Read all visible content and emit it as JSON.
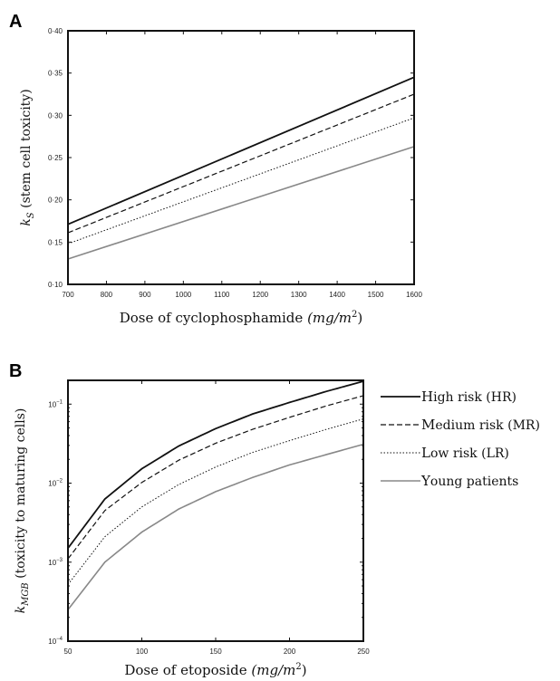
{
  "chart_data": [
    {
      "panel": "A",
      "type": "line",
      "xlabel_main": "Dose of cyclophosphamide ",
      "xlabel_math": "(mg/m",
      "xlabel_sup": "2",
      "xlabel_close": ")",
      "ylabel_main": "k",
      "ylabel_sub": "S",
      "ylabel_rest": " (stem cell toxicity)",
      "xlim": [
        700,
        1600
      ],
      "ylim": [
        0.1,
        0.4
      ],
      "x_ticks": [
        700,
        800,
        900,
        1000,
        1100,
        1200,
        1300,
        1400,
        1500,
        1600
      ],
      "y_ticks": [
        0.1,
        0.15,
        0.2,
        0.25,
        0.3,
        0.35,
        0.4
      ],
      "y_tick_labels": [
        "0·10",
        "0·15",
        "0·20",
        "0·25",
        "0·30",
        "0·35",
        "0·40"
      ],
      "x_tick_labels": [
        "700",
        "800",
        "900",
        "1000",
        "1100",
        "1200",
        "1300",
        "1400",
        "1500",
        "1600"
      ],
      "series": [
        {
          "key": "hr",
          "x": [
            700,
            1600
          ],
          "y": [
            0.171,
            0.345
          ],
          "color": "#111111",
          "dash": "none",
          "width": 1.8
        },
        {
          "key": "mr",
          "x": [
            700,
            1600
          ],
          "y": [
            0.161,
            0.325
          ],
          "color": "#111111",
          "dash": "6,3",
          "width": 1.2
        },
        {
          "key": "lr",
          "x": [
            700,
            1600
          ],
          "y": [
            0.148,
            0.297
          ],
          "color": "#111111",
          "dash": "1.5,2",
          "width": 1.0
        },
        {
          "key": "young",
          "x": [
            700,
            1600
          ],
          "y": [
            0.13,
            0.263
          ],
          "color": "#888888",
          "dash": "none",
          "width": 1.6
        }
      ]
    },
    {
      "panel": "B",
      "type": "line",
      "xlabel_main": "Dose of etoposide ",
      "xlabel_math": "(mg/m",
      "xlabel_sup": "2",
      "xlabel_close": ")",
      "ylabel_main": "k",
      "ylabel_sub": "MGB",
      "ylabel_rest": " (toxicity to maturing cells)",
      "xlim": [
        50,
        250
      ],
      "ylim": [
        0.0001,
        0.2
      ],
      "y_scale": "log",
      "x_ticks": [
        50,
        100,
        150,
        200,
        250
      ],
      "x_tick_labels": [
        "50",
        "100",
        "150",
        "200",
        "250"
      ],
      "y_ticks": [
        0.0001,
        0.001,
        0.01,
        0.1
      ],
      "y_tick_base": [
        "10",
        "10",
        "10",
        "10"
      ],
      "y_tick_exp": [
        "−4",
        "−3",
        "−2",
        "−1"
      ],
      "series": [
        {
          "key": "hr",
          "x": [
            50,
            75,
            100,
            125,
            150,
            175,
            200,
            225,
            250
          ],
          "y": [
            0.0015,
            0.0063,
            0.0152,
            0.0295,
            0.049,
            0.075,
            0.105,
            0.145,
            0.195
          ],
          "color": "#111111",
          "dash": "none",
          "width": 1.8
        },
        {
          "key": "mr",
          "x": [
            50,
            75,
            100,
            125,
            150,
            175,
            200,
            225,
            250
          ],
          "y": [
            0.0011,
            0.0045,
            0.0102,
            0.0195,
            0.032,
            0.048,
            0.068,
            0.095,
            0.128
          ],
          "color": "#111111",
          "dash": "6,3",
          "width": 1.2
        },
        {
          "key": "lr",
          "x": [
            50,
            75,
            100,
            125,
            150,
            175,
            200,
            225,
            250
          ],
          "y": [
            0.00052,
            0.0021,
            0.005,
            0.0096,
            0.016,
            0.0245,
            0.0345,
            0.048,
            0.065
          ],
          "color": "#111111",
          "dash": "1.5,2",
          "width": 1.0
        },
        {
          "key": "young",
          "x": [
            50,
            75,
            100,
            125,
            150,
            175,
            200,
            225,
            250
          ],
          "y": [
            0.00025,
            0.001,
            0.0024,
            0.0047,
            0.0078,
            0.0118,
            0.017,
            0.023,
            0.031
          ],
          "color": "#888888",
          "dash": "none",
          "width": 1.6
        }
      ]
    }
  ],
  "legend": {
    "placement": "right of panel B",
    "items": [
      {
        "key": "hr",
        "initial": "H",
        "rest": "igh risk (HR)",
        "color": "#111111",
        "dash": "none",
        "width": 1.8
      },
      {
        "key": "mr",
        "initial": "M",
        "rest": "edium risk (MR)",
        "color": "#111111",
        "dash": "6,3",
        "width": 1.2
      },
      {
        "key": "lr",
        "initial": "L",
        "rest": "ow risk (LR)",
        "color": "#111111",
        "dash": "1.5,2",
        "width": 1.0
      },
      {
        "key": "young",
        "initial": "Y",
        "rest": "oung patients",
        "color": "#888888",
        "dash": "none",
        "width": 1.6
      }
    ]
  }
}
